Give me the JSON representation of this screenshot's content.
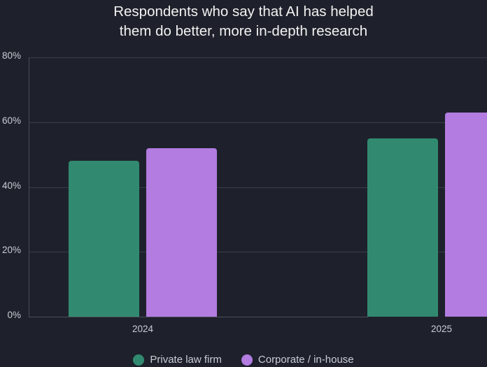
{
  "title_line1": "Respondents who say that AI has helped",
  "title_line2": "them do better, more in-depth research",
  "colors": {
    "private": "#318a6f",
    "corporate": "#b27ce0",
    "background": "#1e212b"
  },
  "chart_data": {
    "type": "bar",
    "title": "Respondents who say that AI has helped them do better, more in-depth research",
    "categories": [
      "2024",
      "2025"
    ],
    "series": [
      {
        "name": "Private law firm",
        "values": [
          48,
          55
        ],
        "color": "#318a6f"
      },
      {
        "name": "Corporate / in-house",
        "values": [
          52,
          63
        ],
        "color": "#b27ce0"
      }
    ],
    "xlabel": "",
    "ylabel": "",
    "ylim": [
      0,
      80
    ],
    "yticks": [
      "0%",
      "20%",
      "40%",
      "60%",
      "80%"
    ],
    "grid": true,
    "legend_position": "bottom"
  }
}
